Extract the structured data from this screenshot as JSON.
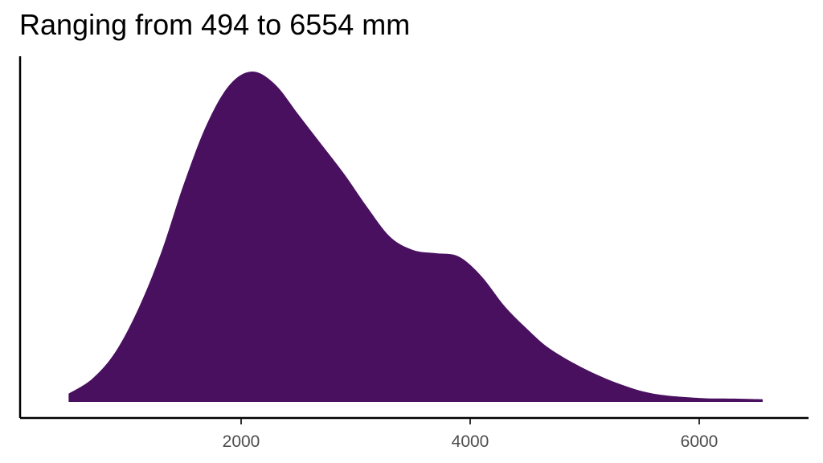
{
  "chart_data": {
    "type": "area",
    "title": "Ranging from 494 to 6554 mm",
    "xlabel": "",
    "ylabel": "",
    "xlim": [
      0,
      7000
    ],
    "ylim": [
      0,
      1
    ],
    "x_ticks": [
      2000,
      4000,
      6000
    ],
    "x_tick_labels": [
      "2000",
      "4000",
      "6000"
    ],
    "y_ticks_shown": false,
    "grid": false,
    "legend": "none",
    "fill_color": "#49105f",
    "series": [
      {
        "x": [
          494,
          700,
          900,
          1100,
          1300,
          1500,
          1700,
          1900,
          2100,
          2300,
          2500,
          2700,
          2900,
          3100,
          3300,
          3500,
          3700,
          3900,
          4100,
          4300,
          4500,
          4700,
          5000,
          5300,
          5600,
          6000,
          6300,
          6554
        ],
        "y": [
          0.025,
          0.07,
          0.15,
          0.28,
          0.45,
          0.66,
          0.84,
          0.96,
          1.0,
          0.96,
          0.87,
          0.78,
          0.69,
          0.59,
          0.5,
          0.46,
          0.45,
          0.44,
          0.38,
          0.29,
          0.22,
          0.16,
          0.1,
          0.055,
          0.025,
          0.012,
          0.01,
          0.008
        ]
      }
    ]
  }
}
